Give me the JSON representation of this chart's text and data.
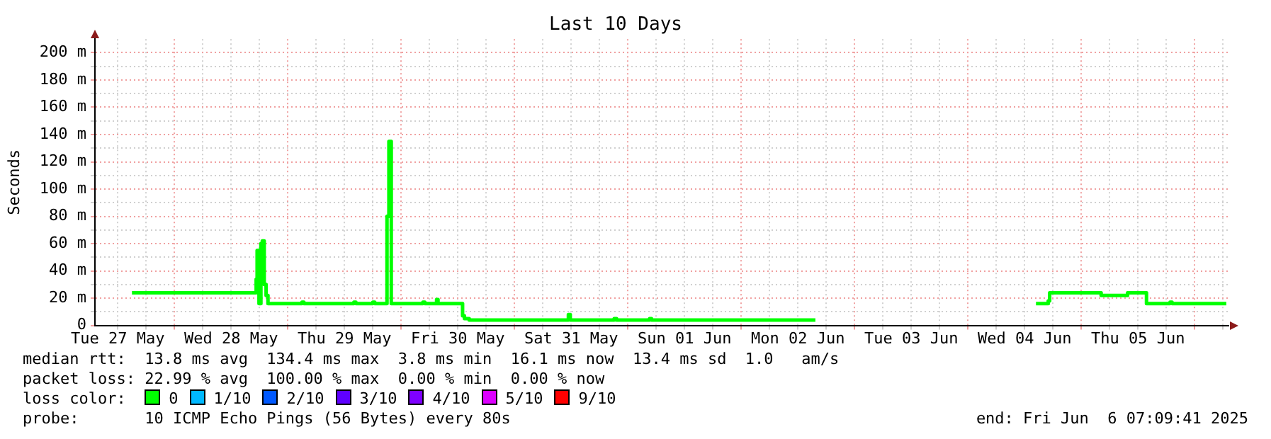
{
  "chart_data": {
    "type": "line",
    "title": "Last 10 Days",
    "ylabel": "Seconds",
    "xlim": [
      "2025-05-27T07:09:41",
      "2025-06-06T07:09:41"
    ],
    "xticks": [
      {
        "value": "2025-05-27T12:00",
        "label": "Tue 27 May"
      },
      {
        "value": "2025-05-27T18:00",
        "label": null
      },
      {
        "value": "2025-05-28T00:00",
        "label": null
      },
      {
        "value": "2025-05-28T06:00",
        "label": null
      },
      {
        "value": "2025-05-28T12:00",
        "label": "Wed 28 May"
      },
      {
        "value": "2025-05-28T18:00",
        "label": null
      },
      {
        "value": "2025-05-29T00:00",
        "label": null
      },
      {
        "value": "2025-05-29T06:00",
        "label": null
      },
      {
        "value": "2025-05-29T12:00",
        "label": "Thu 29 May"
      },
      {
        "value": "2025-05-29T18:00",
        "label": null
      },
      {
        "value": "2025-05-30T00:00",
        "label": null
      },
      {
        "value": "2025-05-30T06:00",
        "label": null
      },
      {
        "value": "2025-05-30T12:00",
        "label": "Fri 30 May"
      },
      {
        "value": "2025-05-30T18:00",
        "label": null
      },
      {
        "value": "2025-05-31T00:00",
        "label": null
      },
      {
        "value": "2025-05-31T06:00",
        "label": null
      },
      {
        "value": "2025-05-31T12:00",
        "label": "Sat 31 May"
      },
      {
        "value": "2025-05-31T18:00",
        "label": null
      },
      {
        "value": "2025-06-01T00:00",
        "label": null
      },
      {
        "value": "2025-06-01T06:00",
        "label": null
      },
      {
        "value": "2025-06-01T12:00",
        "label": "Sun 01 Jun"
      },
      {
        "value": "2025-06-01T18:00",
        "label": null
      },
      {
        "value": "2025-06-02T00:00",
        "label": null
      },
      {
        "value": "2025-06-02T06:00",
        "label": null
      },
      {
        "value": "2025-06-02T12:00",
        "label": "Mon 02 Jun"
      },
      {
        "value": "2025-06-02T18:00",
        "label": null
      },
      {
        "value": "2025-06-03T00:00",
        "label": null
      },
      {
        "value": "2025-06-03T06:00",
        "label": null
      },
      {
        "value": "2025-06-03T12:00",
        "label": "Tue 03 Jun"
      },
      {
        "value": "2025-06-03T18:00",
        "label": null
      },
      {
        "value": "2025-06-04T00:00",
        "label": null
      },
      {
        "value": "2025-06-04T06:00",
        "label": null
      },
      {
        "value": "2025-06-04T12:00",
        "label": "Wed 04 Jun"
      },
      {
        "value": "2025-06-04T18:00",
        "label": null
      },
      {
        "value": "2025-06-05T00:00",
        "label": null
      },
      {
        "value": "2025-06-05T06:00",
        "label": null
      },
      {
        "value": "2025-06-05T12:00",
        "label": "Thu 05 Jun"
      },
      {
        "value": "2025-06-05T18:00",
        "label": null
      },
      {
        "value": "2025-06-06T00:00",
        "label": null
      },
      {
        "value": "2025-06-06T06:00",
        "label": null
      }
    ],
    "ylim": [
      0,
      210
    ],
    "yticks": [
      0,
      {
        "value": 10,
        "label": null
      },
      {
        "value": 20,
        "label": "20 m"
      },
      {
        "value": 30,
        "label": null
      },
      {
        "value": 40,
        "label": "40 m"
      },
      {
        "value": 50,
        "label": null
      },
      {
        "value": 60,
        "label": "60 m"
      },
      {
        "value": 70,
        "label": null
      },
      {
        "value": 80,
        "label": "80 m"
      },
      {
        "value": 90,
        "label": null
      },
      {
        "value": 100,
        "label": "100 m"
      },
      {
        "value": 110,
        "label": null
      },
      {
        "value": 120,
        "label": "120 m"
      },
      {
        "value": 130,
        "label": null
      },
      {
        "value": 140,
        "label": "140 m"
      },
      {
        "value": 150,
        "label": null
      },
      {
        "value": 160,
        "label": "160 m"
      },
      {
        "value": 170,
        "label": null
      },
      {
        "value": 180,
        "label": "180 m"
      },
      {
        "value": 190,
        "label": null
      },
      {
        "value": 200,
        "label": "200 m"
      }
    ],
    "grid": true,
    "marker": "none",
    "line_style": "solid",
    "legend": "bottom",
    "legend_title": "loss color:",
    "series": [
      {
        "name": "0",
        "color": "#00ff00",
        "type": "step",
        "x": [
          "2025-05-27T15:00",
          "2025-05-28T17:18",
          "2025-05-28T17:30",
          "2025-05-28T17:54",
          "2025-05-28T18:18",
          "2025-05-28T18:36",
          "2025-05-28T19:00",
          "2025-05-28T19:24",
          "2025-05-28T19:48",
          "2025-05-29T03:00",
          "2025-05-29T03:24",
          "2025-05-29T14:00",
          "2025-05-29T14:24",
          "2025-05-29T18:00",
          "2025-05-29T18:24",
          "2025-05-29T21:00",
          "2025-05-29T21:24",
          "2025-05-29T21:54",
          "2025-05-30T04:36",
          "2025-05-30T05:00",
          "2025-05-30T07:30",
          "2025-05-30T07:48",
          "2025-05-30T13:00",
          "2025-05-30T13:24",
          "2025-05-30T14:24",
          "2025-05-31T11:24",
          "2025-05-31T11:48",
          "2025-05-31T21:06",
          "2025-05-31T21:36",
          "2025-06-01T04:36",
          "2025-06-01T05:00",
          "2025-06-02T15:42",
          "2025-06-03T12:00",
          "2025-06-04T14:24",
          "2025-06-04T17:00",
          "2025-06-04T17:18",
          "2025-06-05T04:12",
          "2025-06-05T09:48",
          "2025-06-05T13:48",
          "2025-06-05T18:48",
          "2025-06-05T19:12",
          "2025-06-06T06:42"
        ],
        "values": [
          24,
          34,
          55,
          16,
          60,
          62,
          30,
          22,
          16,
          17,
          16,
          17,
          16,
          17,
          16,
          80,
          135,
          16,
          17,
          16,
          19,
          16,
          7,
          5,
          4,
          8,
          4,
          5,
          4,
          5,
          4,
          4,
          null,
          16,
          18,
          24,
          22,
          24,
          16,
          17,
          16,
          16
        ]
      },
      {
        "name": "1/10",
        "color": "#00b8ff"
      },
      {
        "name": "2/10",
        "color": "#0059ff"
      },
      {
        "name": "3/10",
        "color": "#5e00ff"
      },
      {
        "name": "4/10",
        "color": "#7e00ff"
      },
      {
        "name": "5/10",
        "color": "#dd00ff"
      },
      {
        "name": "9/10",
        "color": "#ff0000"
      }
    ],
    "annotations": [
      "median rtt:  13.8 ms avg  134.4 ms max  3.8 ms min  16.1 ms now  13.4 ms sd  1.0   am/s",
      "packet loss: 22.99 % avg  100.00 % max  0.00 % min  0.00 % now",
      "probe:       10 ICMP Echo Pings (56 Bytes) every 80s",
      "end: Fri Jun  6 07:09:41 2025"
    ]
  }
}
